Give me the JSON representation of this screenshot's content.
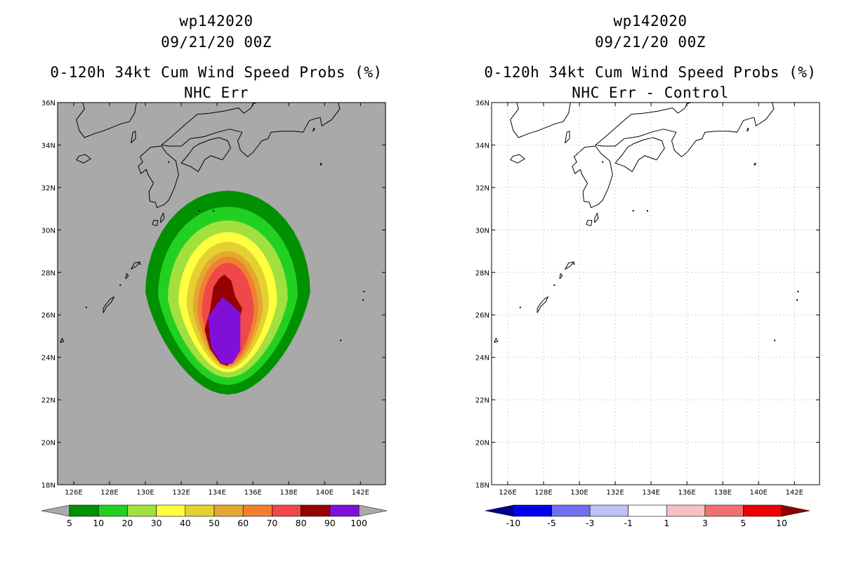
{
  "panels": [
    {
      "id": "left",
      "storm_id": "wp142020",
      "datetime": "09/21/20 00Z",
      "product": "0-120h 34kt Cum Wind Speed Probs (%)",
      "subtitle": "NHC Err",
      "background": "#a9a9a9",
      "colorbar": {
        "colors": [
          "#009000",
          "#22d022",
          "#a2e040",
          "#ffff40",
          "#e4d030",
          "#e4a830",
          "#f08030",
          "#f04848",
          "#960000",
          "#8010d8"
        ],
        "ticks": [
          "5",
          "10",
          "20",
          "30",
          "40",
          "50",
          "60",
          "70",
          "80",
          "90",
          "100"
        ],
        "under_color": "#a9a9a9",
        "over_color": "#a9a9a9"
      }
    },
    {
      "id": "right",
      "storm_id": "wp142020",
      "datetime": "09/21/20 00Z",
      "product": "0-120h 34kt Cum Wind Speed Probs (%)",
      "subtitle": "NHC Err - Control",
      "background": "#ffffff",
      "colorbar": {
        "colors": [
          "#0000f0",
          "#7070f0",
          "#c0c0f8",
          "#ffffff",
          "#f8c0c0",
          "#f07070",
          "#f00000"
        ],
        "ticks": [
          "-10",
          "-5",
          "-3",
          "-1",
          "1",
          "3",
          "5",
          "10"
        ],
        "under_color": "#00008c",
        "over_color": "#8c0000"
      }
    }
  ],
  "axes": {
    "lon_labels": [
      "126E",
      "128E",
      "130E",
      "132E",
      "134E",
      "136E",
      "138E",
      "140E",
      "142E"
    ],
    "lon_values": [
      126,
      128,
      130,
      132,
      134,
      136,
      138,
      140,
      142
    ],
    "lat_labels": [
      "18N",
      "20N",
      "22N",
      "24N",
      "26N",
      "28N",
      "30N",
      "32N",
      "34N",
      "36N"
    ],
    "lat_values": [
      18,
      20,
      22,
      24,
      26,
      28,
      30,
      32,
      34,
      36
    ],
    "lon_range": [
      125.1,
      143.4
    ],
    "lat_range": [
      18,
      36
    ]
  },
  "probability_field": {
    "center_lon": 134.6,
    "levels": [
      {
        "label": "5-10",
        "color": "#009000",
        "north": 31.85,
        "south": 22.25,
        "half_width": 4.6
      },
      {
        "label": "10-20",
        "color": "#22d022",
        "north": 31.1,
        "south": 22.7,
        "half_width": 3.9
      },
      {
        "label": "20-30",
        "color": "#a2e040",
        "north": 30.45,
        "south": 23.05,
        "half_width": 3.35
      },
      {
        "label": "30-40",
        "color": "#ffff40",
        "north": 29.9,
        "south": 23.3,
        "half_width": 2.75
      },
      {
        "label": "40-50",
        "color": "#e4d030",
        "north": 29.45,
        "south": 23.45,
        "half_width": 2.3
      },
      {
        "label": "50-60",
        "color": "#e4a830",
        "north": 29.0,
        "south": 23.55,
        "half_width": 1.95
      },
      {
        "label": "60-70",
        "color": "#f08030",
        "north": 28.75,
        "south": 23.6,
        "half_width": 1.7
      },
      {
        "label": "70-80",
        "color": "#f04848",
        "north": 28.45,
        "south": 23.7,
        "half_width": 1.45
      }
    ],
    "core_80_90_color": "#960000",
    "core_90_100_color": "#8010d8"
  }
}
